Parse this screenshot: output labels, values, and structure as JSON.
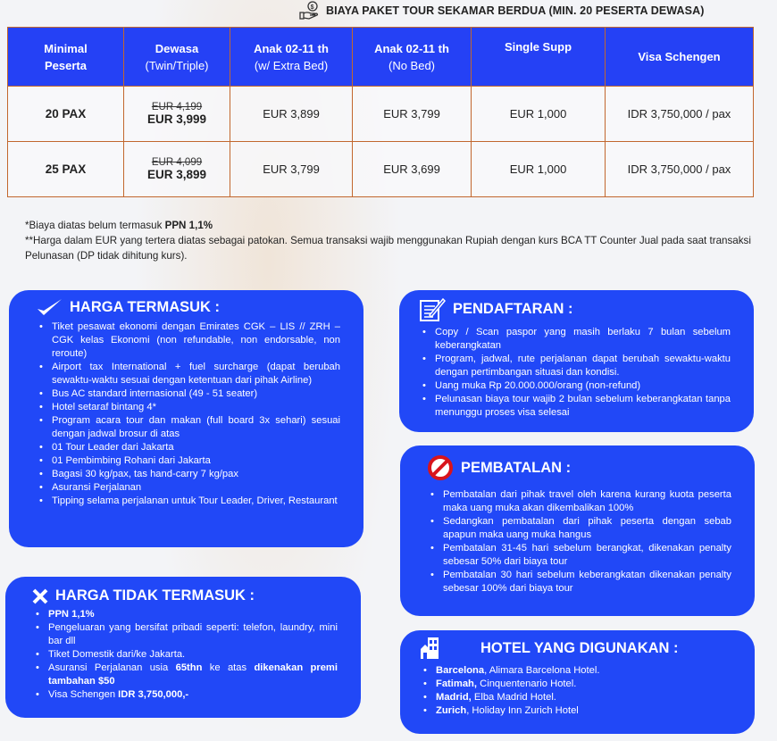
{
  "title": "BIAYA PAKET TOUR SEKAMAR BERDUA (MIN. 20 PESERTA DEWASA)",
  "table": {
    "headers": [
      {
        "main": "Minimal",
        "sub": "Peserta",
        "sub_bold": true
      },
      {
        "main": "Dewasa",
        "sub": "(Twin/Triple)"
      },
      {
        "main": "Anak 02-11 th",
        "sub": "(w/ Extra Bed)"
      },
      {
        "main": "Anak 02-11 th",
        "sub": "(No Bed)"
      },
      {
        "main": "Single Supp",
        "sub": ""
      },
      {
        "main": "Visa Schengen",
        "sub": ""
      }
    ],
    "rows": [
      {
        "pax": "20 PAX",
        "dewasa_old": "EUR 4,199",
        "dewasa": "EUR 3,999",
        "anak_bed": "EUR 3,899",
        "anak_nobed": "EUR 3,799",
        "single": "EUR 1,000",
        "visa": "IDR 3,750,000 / pax"
      },
      {
        "pax": "25 PAX",
        "dewasa_old": "EUR 4,099",
        "dewasa": "EUR 3,899",
        "anak_bed": "EUR 3,799",
        "anak_nobed": "EUR 3,699",
        "single": "EUR 1,000",
        "visa": "IDR 3,750,000 / pax"
      }
    ]
  },
  "notes": {
    "line1": "*Biaya diatas belum termasuk ",
    "line1_bold": "PPN 1,1%",
    "line2": "**Harga dalam EUR yang tertera diatas sebagai patokan. Semua transaksi wajib menggunakan Rupiah dengan kurs BCA TT Counter Jual pada saat transaksi Pelunasan (DP tidak dihitung kurs)."
  },
  "sections": {
    "termasuk": {
      "title": "HARGA TERMASUK :",
      "icon": "checkmark-icon",
      "items": [
        [
          {
            "t": "Tiket pesawat ekonomi dengan Emirates CGK – LIS // ZRH – CGK kelas Ekonomi (non refundable,  non endorsable, non reroute)"
          }
        ],
        [
          {
            "t": "Airport tax International + fuel surcharge (dapat berubah sewaktu-waktu sesuai dengan ketentuan dari pihak Airline)"
          }
        ],
        [
          {
            "t": "Bus AC standard internasional (49 - 51 seater)"
          }
        ],
        [
          {
            "t": "Hotel setaraf bintang 4*"
          }
        ],
        [
          {
            "t": "Program acara tour dan makan (full board 3x sehari) sesuai dengan jadwal brosur di atas"
          }
        ],
        [
          {
            "t": "01 Tour Leader dari Jakarta"
          }
        ],
        [
          {
            "t": "01 Pembimbing Rohani dari Jakarta"
          }
        ],
        [
          {
            "t": "Bagasi 30 kg/pax, tas hand-carry 7 kg/pax"
          }
        ],
        [
          {
            "t": "Asuransi Perjalanan"
          }
        ],
        [
          {
            "t": "Tipping selama perjalanan untuk Tour Leader, Driver, Restaurant"
          }
        ]
      ]
    },
    "tidak_termasuk": {
      "title": "HARGA TIDAK TERMASUK :",
      "icon": "x-mark-icon",
      "items": [
        [
          {
            "t": "PPN 1,1%",
            "b": true
          }
        ],
        [
          {
            "t": "Pengeluaran yang bersifat pribadi seperti: telefon, laundry, mini bar dll"
          }
        ],
        [
          {
            "t": "Tiket Domestik dari/ke Jakarta."
          }
        ],
        [
          {
            "t": "Asuransi Perjalanan usia "
          },
          {
            "t": "65thn",
            "b": true
          },
          {
            "t": " ke atas "
          },
          {
            "t": "dikenakan premi tambahan $50",
            "b": true
          }
        ],
        [
          {
            "t": "Visa Schengen "
          },
          {
            "t": "IDR 3,750,000,-",
            "b": true
          }
        ]
      ]
    },
    "pendaftaran": {
      "title": "PENDAFTARAN :",
      "icon": "form-edit-icon",
      "items": [
        [
          {
            "t": "Copy / Scan paspor yang masih berlaku 7 bulan sebelum keberangkatan"
          }
        ],
        [
          {
            "t": "Program, jadwal, rute perjalanan dapat berubah sewaktu-waktu dengan pertimbangan situasi dan kondisi."
          }
        ],
        [
          {
            "t": "Uang muka Rp 20.000.000/orang (non-refund)"
          }
        ],
        [
          {
            "t": "Pelunasan biaya tour wajib 2 bulan sebelum keberangkatan tanpa menunggu proses visa selesai"
          }
        ]
      ]
    },
    "pembatalan": {
      "title": "PEMBATALAN :",
      "icon": "prohibited-icon",
      "items": [
        [
          {
            "t": "Pembatalan dari pihak travel oleh karena kurang kuota peserta maka uang muka akan dikembalikan 100%"
          }
        ],
        [
          {
            "t": "Sedangkan pembatalan dari pihak peserta dengan sebab apapun maka uang muka hangus"
          }
        ],
        [
          {
            "t": "Pembatalan 31-45 hari sebelum berangkat, dikenakan penalty sebesar 50% dari biaya tour"
          }
        ],
        [
          {
            "t": "Pembatalan 30 hari sebelum keberangkatan dikenakan penalty sebesar 100% dari biaya tour"
          }
        ]
      ]
    },
    "hotel": {
      "title": "HOTEL YANG DIGUNAKAN :",
      "icon": "building-icon",
      "items": [
        [
          {
            "t": "Barcelona",
            "b": true
          },
          {
            "t": ", Alimara Barcelona Hotel."
          }
        ],
        [
          {
            "t": "Fatimah,",
            "b": true
          },
          {
            "t": " Cinquentenario Hotel."
          }
        ],
        [
          {
            "t": "Madrid,",
            "b": true
          },
          {
            "t": " Elba Madrid Hotel."
          }
        ],
        [
          {
            "t": "Zurich",
            "b": true
          },
          {
            "t": ", Holiday Inn Zurich Hotel"
          }
        ]
      ]
    }
  },
  "colors": {
    "box_blue": "#2148f7",
    "header_blue": "#2541f5",
    "table_border": "#c2672e",
    "prohibited_red": "#d8141c"
  }
}
